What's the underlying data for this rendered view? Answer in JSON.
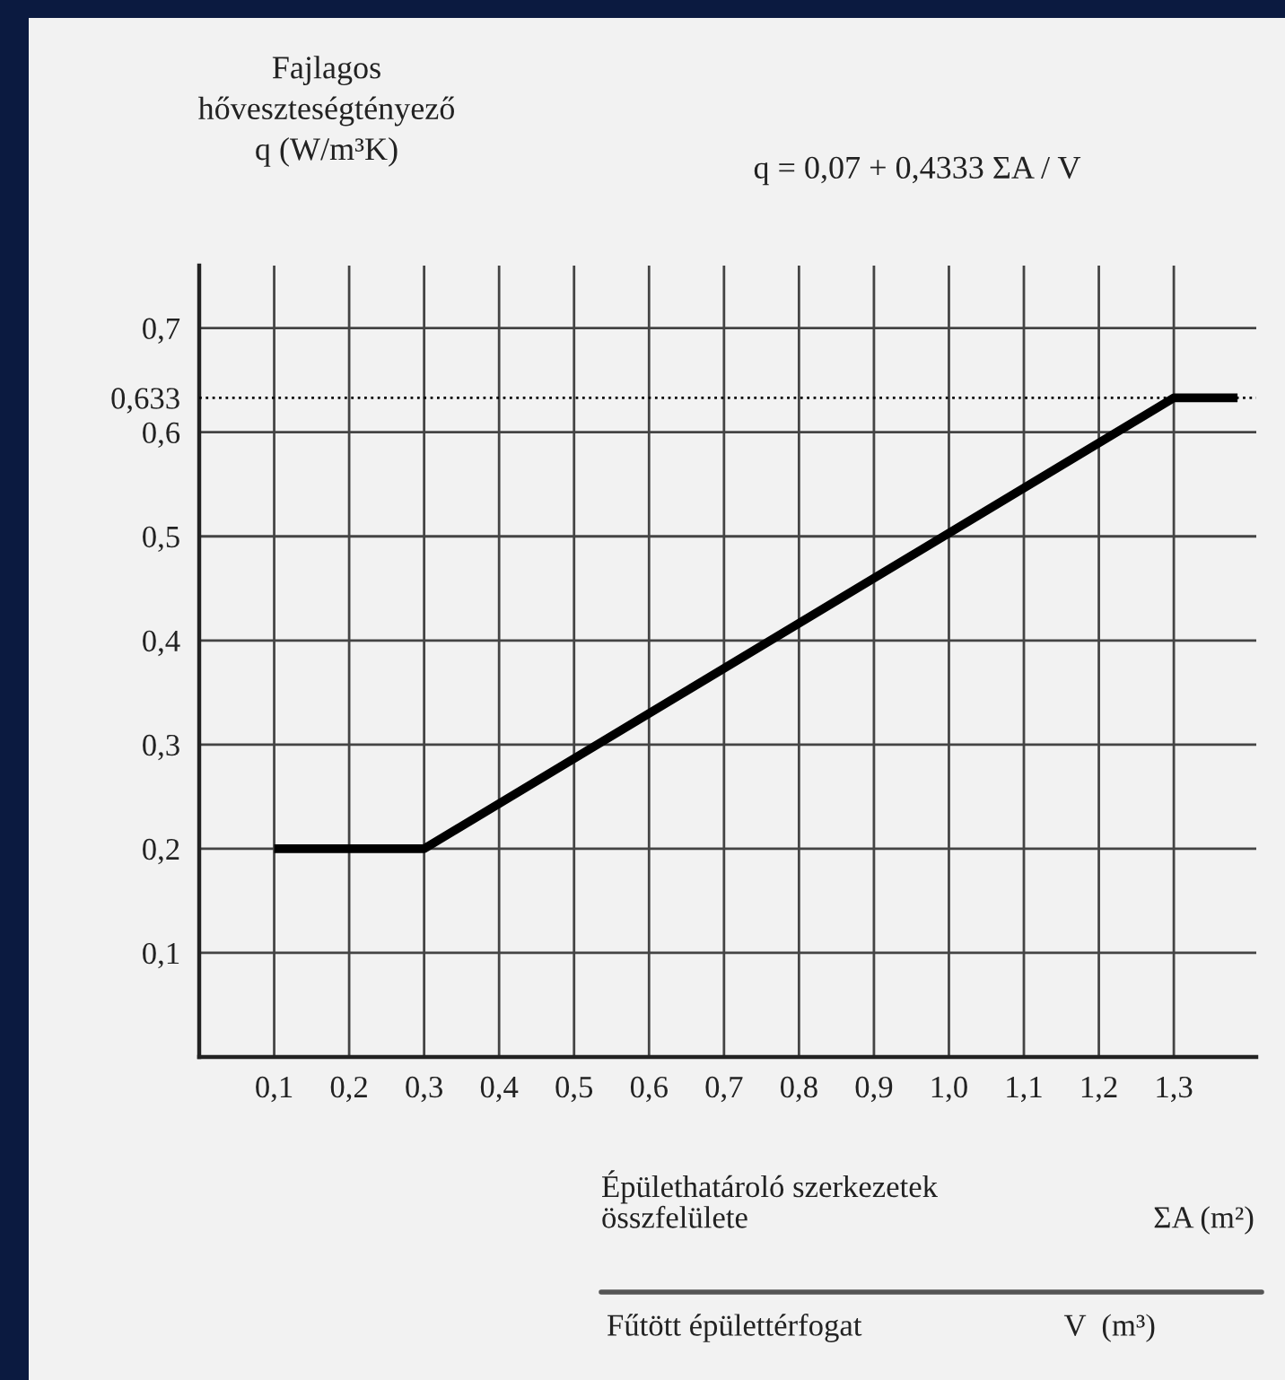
{
  "chart_data": {
    "type": "line",
    "ylabel": "Fajlagos\nhőveszteségtényező\nq (W/m³K)",
    "xlabel": "Épülethatároló szerkezetek\nösszfelülete                                                    ΣA (m²)",
    "annotations": [
      "q = 0,07 + 0,4333 ΣA / V",
      "Fűtött épülettérfogat                          V  (m³)"
    ],
    "series": [
      {
        "color": "#000000",
        "x": [
          0.1,
          0.3,
          1.3,
          1.385
        ],
        "values": [
          0.2,
          0.2,
          0.633,
          0.633
        ]
      }
    ],
    "xlim": [
      0,
      1.41
    ],
    "ylim": [
      0,
      0.76
    ],
    "xticks": [
      {
        "value": 0.1,
        "label": "0,1"
      },
      {
        "value": 0.2,
        "label": "0,2"
      },
      {
        "value": 0.3,
        "label": "0,3"
      },
      {
        "value": 0.4,
        "label": "0,4"
      },
      {
        "value": 0.5,
        "label": "0,5"
      },
      {
        "value": 0.6,
        "label": "0,6"
      },
      {
        "value": 0.7,
        "label": "0,7"
      },
      {
        "value": 0.8,
        "label": "0,8"
      },
      {
        "value": 0.9,
        "label": "0,9"
      },
      {
        "value": 1.0,
        "label": "1,0"
      },
      {
        "value": 1.1,
        "label": "1,1"
      },
      {
        "value": 1.2,
        "label": "1,2"
      },
      {
        "value": 1.3,
        "label": "1,3"
      }
    ],
    "yticks": [
      {
        "value": 0.1,
        "label": "0,1"
      },
      {
        "value": 0.2,
        "label": "0,2"
      },
      {
        "value": 0.3,
        "label": "0,3"
      },
      {
        "value": 0.4,
        "label": "0,4"
      },
      {
        "value": 0.5,
        "label": "0,5"
      },
      {
        "value": 0.6,
        "label": "0,6"
      },
      {
        "value": 0.633,
        "label": "0,633"
      },
      {
        "value": 0.7,
        "label": "0,7"
      }
    ],
    "ref_lines": [
      {
        "axis": "y",
        "value": 0.633,
        "label": null,
        "color": "#000000",
        "line_style": "dotted"
      }
    ],
    "grid": true,
    "marker": "none",
    "line_style": "solid",
    "legend": false
  }
}
